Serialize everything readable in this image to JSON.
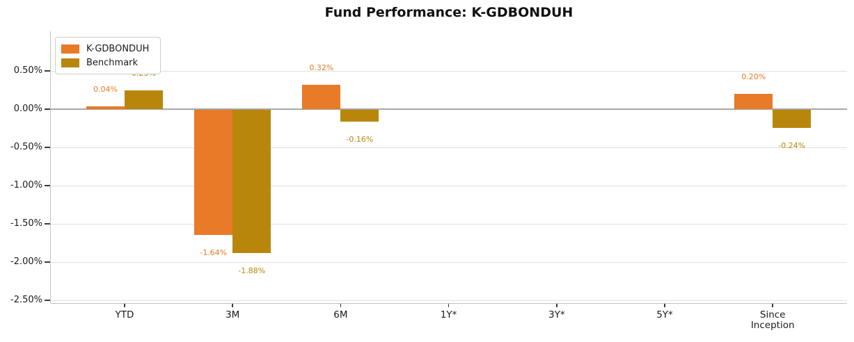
{
  "chart_data": {
    "type": "bar",
    "title": "Fund Performance: K-GDBONDUH",
    "categories": [
      "YTD",
      "3M",
      "6M",
      "1Y*",
      "3Y*",
      "5Y*",
      "Since\nInception"
    ],
    "series": [
      {
        "name": "K-GDBONDUH",
        "color": "#E87A28",
        "values": [
          0.04,
          -1.64,
          0.32,
          null,
          null,
          null,
          0.2
        ],
        "data_labels": [
          "0.04%",
          "-1.64%",
          "0.32%",
          null,
          null,
          null,
          "0.20%"
        ]
      },
      {
        "name": "Benchmark",
        "color": "#B8860B",
        "values": [
          0.25,
          -1.88,
          -0.16,
          null,
          null,
          null,
          -0.24
        ],
        "data_labels": [
          "0.25%",
          "-1.88%",
          "-0.16%",
          null,
          null,
          null,
          "-0.24%"
        ]
      }
    ],
    "yticks": [
      0.5,
      0,
      -0.5,
      -1,
      -1.5,
      -2,
      -2.5
    ],
    "ytick_labels": [
      "0.50%",
      "0.00%",
      "-0.50%",
      "-1.00%",
      "-1.50%",
      "-2.00%",
      "-2.50%"
    ],
    "ylim": [
      -2.53,
      1.02
    ],
    "xlabel": "",
    "ylabel": "",
    "grid": true,
    "legend": {
      "position": "upper-left",
      "entries": [
        "K-GDBONDUH",
        "Benchmark"
      ]
    },
    "colors": {
      "fund": "#E87A28",
      "benchmark": "#B8860B",
      "gridline": "#E0E0E0",
      "zero_line": "#A6A6A6",
      "spine": "#C2C2C2",
      "tick": "#3A3A3A",
      "text": "#1A1A1A"
    }
  }
}
